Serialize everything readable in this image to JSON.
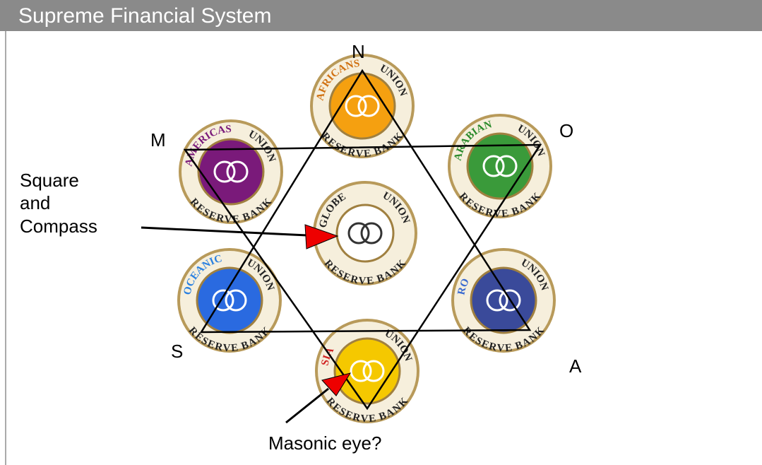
{
  "header": {
    "title": "Supreme Financial System"
  },
  "points": {
    "n": "N",
    "m": "M",
    "o": "O",
    "s": "S",
    "a": "A"
  },
  "annotations": {
    "square_line1": "Square",
    "square_line2": "and",
    "square_line3": "Compass",
    "eye": "Masonic eye?"
  },
  "nodes": [
    {
      "name": "AFRICANS",
      "union": "UNION",
      "bank": "RESERVE BANK"
    },
    {
      "name": "AMERICAS",
      "union": "UNION",
      "bank": "RESERVE BANK"
    },
    {
      "name": "ARABIAN",
      "union": "UNION",
      "bank": "RESERVE BANK"
    },
    {
      "name": "GLOBE",
      "union": "UNION",
      "bank": "RESERVE BANK"
    },
    {
      "name": "OCEANIC",
      "union": "UNION",
      "bank": "RESERVE BANK"
    },
    {
      "name": "RO",
      "union": "UNION",
      "bank": "RESERVE BANK"
    },
    {
      "name": "SIA",
      "union": "UNION",
      "bank": "RESERVE BANK"
    }
  ]
}
